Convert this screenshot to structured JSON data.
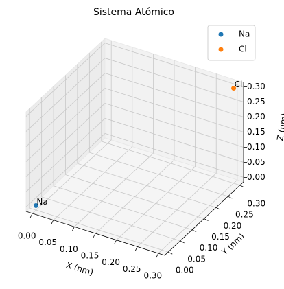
{
  "chart_data": {
    "type": "scatter3d",
    "title": "Sistema Atómico",
    "xlabel": "X (nm)",
    "ylabel": "Y (nm)",
    "zlabel": "Z (nm)",
    "series": [
      {
        "name": "Na",
        "color": "#1f77b4",
        "x": [
          0
        ],
        "y": [
          0
        ],
        "z": [
          0
        ]
      },
      {
        "name": "Cl",
        "color": "#ff7f0e",
        "x": [
          0.3
        ],
        "y": [
          0.3
        ],
        "z": [
          0.3
        ]
      }
    ],
    "xlim": [
      -0.015,
      0.315
    ],
    "ylim": [
      -0.015,
      0.315
    ],
    "zlim": [
      -0.015,
      0.315
    ],
    "xticks": [
      {
        "value": 0,
        "label": "0.00"
      },
      {
        "value": 0.05,
        "label": "0.05"
      },
      {
        "value": 0.1,
        "label": "0.10"
      },
      {
        "value": 0.15,
        "label": "0.15"
      },
      {
        "value": 0.2,
        "label": "0.20"
      },
      {
        "value": 0.25,
        "label": "0.25"
      },
      {
        "value": 0.3,
        "label": "0.30"
      }
    ],
    "yticks": [
      {
        "value": 0,
        "label": "0.00"
      },
      {
        "value": 0.05,
        "label": "0.05"
      },
      {
        "value": 0.1,
        "label": "0.10"
      },
      {
        "value": 0.15,
        "label": "0.15"
      },
      {
        "value": 0.2,
        "label": "0.20"
      },
      {
        "value": 0.25,
        "label": "0.25"
      },
      {
        "value": 0.3,
        "label": "0.30"
      }
    ],
    "zticks": [
      {
        "value": 0,
        "label": "0.00"
      },
      {
        "value": 0.05,
        "label": "0.05"
      },
      {
        "value": 0.1,
        "label": "0.10"
      },
      {
        "value": 0.15,
        "label": "0.15"
      },
      {
        "value": 0.2,
        "label": "0.20"
      },
      {
        "value": 0.25,
        "label": "0.25"
      },
      {
        "value": 0.3,
        "label": "0.30"
      }
    ],
    "grid": true,
    "legend": "upper right"
  }
}
